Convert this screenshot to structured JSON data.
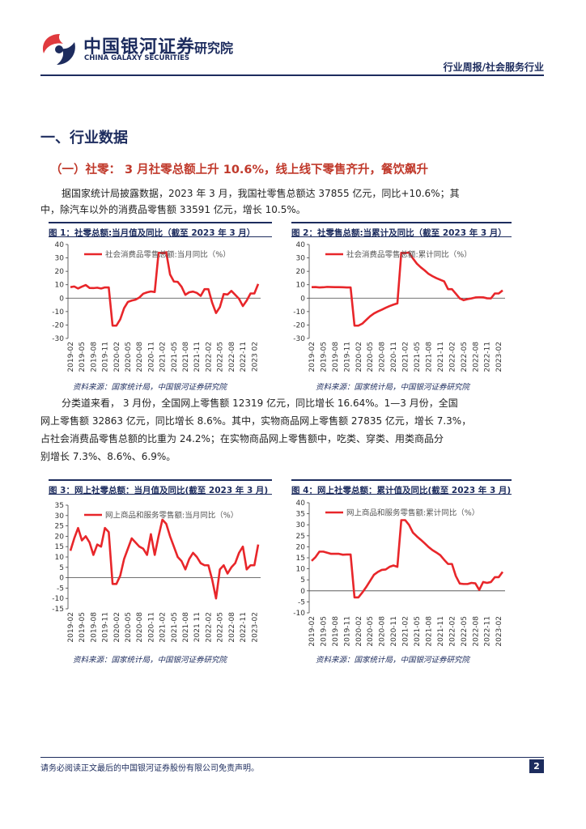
{
  "header": {
    "logo_cn": "中国银河证券",
    "logo_suffix": "研究院",
    "logo_en": "CHINA GALAXY SECURITIES",
    "report_type": "行业周报/社会服务行业"
  },
  "section_title": "一、行业数据",
  "subsection_title": "（一）社零： 3 月社零总额上升 10.6%，线上线下零售齐升，餐饮飙升",
  "paragraphs": [
    [
      "据国家统计局披露数据，2023 年 3 月，我国社零售总额达 37855 亿元，同比+10.6%；其",
      "中，除汽车以外的消费品零售额 33591 亿元，增长 10.5%。"
    ],
    [
      "分类道来看， 3 月份，全国网上零售额 12319 亿元，同比增长 16.64%。1—3 月份，全国",
      "网上零售额 32863 亿元，同比增长 8.6%。其中，实物商品网上零售额 27835 亿元，增长 7.3%，",
      "占社会消费品零售总额的比重为 24.2%；在实物商品网上零售额中，吃类、穿类、用类商品分",
      "别增长 7.3%、8.6%、6.9%。"
    ]
  ],
  "figures": [
    {
      "title": "图 1：社零总额:当月值及同比（截至 2023 年 3 月）",
      "source": "资料来源：国家统计局，中国银河证券研究院"
    },
    {
      "title": "图 2：社零售总额:当累计及同比（截至 2023 年 3 月）",
      "source": "资料来源：国家统计局，中国银河证券研究院"
    },
    {
      "title": "图 3：网上社零总额：当月值及同比(截至 2023 年 3 月)",
      "source": "资料来源：国家统计局，中国银河证券研究院"
    },
    {
      "title": "图 4：网上社零总额：累计值及同比(截至 2023 年 3 月)",
      "source": "资料来源：国家统计局，中国银河证券研究院"
    }
  ],
  "chart_data": [
    {
      "type": "line",
      "categories": [
        "2019-02",
        null,
        null,
        "2019-05",
        null,
        null,
        "2019-08",
        null,
        null,
        "2019-11",
        null,
        null,
        "2020-02",
        null,
        null,
        "2020-05",
        null,
        null,
        "2020-08",
        null,
        null,
        "2020-11",
        null,
        null,
        "2021-02",
        null,
        null,
        "2021-05",
        null,
        null,
        "2021-08",
        null,
        null,
        "2021-11",
        null,
        null,
        "2022-02",
        null,
        null,
        "2022-05",
        null,
        null,
        "2022-08",
        null,
        null,
        "2022-11",
        null,
        null,
        "2023 02",
        null
      ],
      "series": [
        {
          "name": "社会消费品零售总额:当月同比（%）",
          "color": "#e8262a",
          "values": [
            8.2,
            8.7,
            7.2,
            8.6,
            9.8,
            7.6,
            7.5,
            7.8,
            7.2,
            8.0,
            8.0,
            -20.5,
            -20.5,
            -15.8,
            -7.5,
            -2.8,
            -1.8,
            -1.1,
            0.5,
            3.3,
            4.3,
            5.0,
            4.6,
            33.8,
            33.8,
            34.2,
            17.7,
            12.4,
            12.1,
            8.5,
            2.5,
            4.4,
            4.9,
            3.9,
            1.7,
            6.7,
            6.7,
            -3.5,
            -11.1,
            -6.7,
            3.1,
            2.7,
            5.4,
            2.5,
            -0.5,
            -5.9,
            -1.8,
            3.5,
            3.5,
            10.6
          ]
        }
      ],
      "ylim": [
        -30,
        40
      ],
      "yticks": [
        -30,
        -20,
        -10,
        0,
        10,
        20,
        30,
        40
      ],
      "legend": "top"
    },
    {
      "type": "line",
      "categories": [
        "2019-02",
        null,
        null,
        "2019-05",
        null,
        null,
        "2019-08",
        null,
        null,
        "2019-11",
        null,
        null,
        "2020-02",
        null,
        null,
        "2020-05",
        null,
        null,
        "2020-08",
        null,
        null,
        "2020-11",
        null,
        null,
        "2021-02",
        null,
        null,
        "2021-05",
        null,
        null,
        "2021-08",
        null,
        null,
        "2021-11",
        null,
        null,
        "2022-02",
        null,
        null,
        "2022-05",
        null,
        null,
        "2022-08",
        null,
        null,
        "2022-11",
        null,
        null,
        "2023-02",
        null
      ],
      "series": [
        {
          "name": "社会消费品零售总额:累计同比（%）",
          "color": "#e8262a",
          "values": [
            8.2,
            8.3,
            8.0,
            8.1,
            8.4,
            8.3,
            8.2,
            8.2,
            8.1,
            8.0,
            8.0,
            -20.5,
            -20.5,
            -19.0,
            -16.2,
            -13.5,
            -11.4,
            -9.9,
            -8.6,
            -7.2,
            -5.9,
            -4.8,
            -3.9,
            33.8,
            33.8,
            33.9,
            29.6,
            25.7,
            23.0,
            20.7,
            18.1,
            16.4,
            14.9,
            13.7,
            12.5,
            6.7,
            6.7,
            3.3,
            -0.2,
            -1.5,
            -0.7,
            -0.2,
            0.5,
            0.7,
            0.6,
            -0.1,
            -0.2,
            3.5,
            3.5,
            5.8
          ]
        }
      ],
      "ylim": [
        -30,
        40
      ],
      "yticks": [
        -30,
        -20,
        -10,
        0,
        10,
        20,
        30,
        40
      ],
      "legend": "top"
    },
    {
      "type": "line",
      "categories": [
        "2019-02",
        null,
        null,
        "2019-05",
        null,
        null,
        "2019-08",
        null,
        null,
        "2019-11",
        null,
        null,
        "2020-02",
        null,
        null,
        "2020-05",
        null,
        null,
        "2020-08",
        null,
        null,
        "2020-11",
        null,
        null,
        "2021-02",
        null,
        null,
        "2021-05",
        null,
        null,
        "2021-08",
        null,
        null,
        "2021 11",
        null,
        null,
        "2022-02",
        null,
        null,
        "2022-05",
        null,
        null,
        "2022-08",
        null,
        null,
        "2022-11",
        null,
        null,
        "2023-02",
        null
      ],
      "series": [
        {
          "name": "网上商品和服务零售额:当月同比（%）",
          "color": "#e8262a",
          "values": [
            13,
            19,
            24,
            18,
            20,
            17,
            11,
            16,
            15,
            24,
            22,
            -3,
            -3,
            1,
            9,
            14,
            19,
            17,
            15,
            14,
            11,
            21,
            11,
            20,
            28,
            26,
            20,
            15,
            10,
            8,
            4,
            9,
            12,
            10,
            7,
            6,
            6,
            -1,
            -10,
            4,
            6,
            2,
            5,
            7,
            12,
            15,
            4,
            6,
            6,
            16
          ]
        }
      ],
      "ylim": [
        -15,
        35
      ],
      "yticks": [
        -15,
        -10,
        -5,
        0,
        5,
        10,
        15,
        20,
        25,
        30,
        35
      ],
      "legend": "top"
    },
    {
      "type": "line",
      "categories": [
        "2019-02",
        null,
        null,
        "2019-05",
        null,
        null,
        "2019-08",
        null,
        null,
        "2019-11",
        null,
        null,
        "2020-02",
        null,
        null,
        "2020-05",
        null,
        null,
        "2020-08",
        null,
        null,
        "2020-11",
        null,
        null,
        "2021-02",
        null,
        null,
        "2021-05",
        null,
        null,
        "2021-08",
        null,
        null,
        "2021-11",
        null,
        null,
        "2022-02",
        null,
        null,
        "2022-05",
        null,
        null,
        "2022-08",
        null,
        null,
        "2022-11",
        null,
        null,
        "2023-02",
        null
      ],
      "series": [
        {
          "name": "网上商品和服务零售额:累计同比（%）",
          "color": "#e8262a",
          "values": [
            13.6,
            15.3,
            17.8,
            17.8,
            17.3,
            16.8,
            16.8,
            16.8,
            16.4,
            16.5,
            16.5,
            -3.0,
            -3.0,
            -0.8,
            1.7,
            4.5,
            7.3,
            8.6,
            9.5,
            9.7,
            10.9,
            11.5,
            10.9,
            32.1,
            32.1,
            29.9,
            26.4,
            24.7,
            23.2,
            21.6,
            19.9,
            18.5,
            17.4,
            16.2,
            14.1,
            12.2,
            12.2,
            6.7,
            3.3,
            3.1,
            3.1,
            3.6,
            3.4,
            0.4,
            4.0,
            3.6,
            4.0,
            6.2,
            6.2,
            8.6
          ]
        }
      ],
      "ylim": [
        -10,
        40
      ],
      "yticks": [
        -10,
        -5,
        0,
        5,
        10,
        15,
        20,
        25,
        30,
        35,
        40
      ],
      "legend": "top"
    }
  ],
  "footer": {
    "disclaimer": "请务必阅读正文最后的中国银河证券股份有限公司免责声明。",
    "page": 2
  }
}
